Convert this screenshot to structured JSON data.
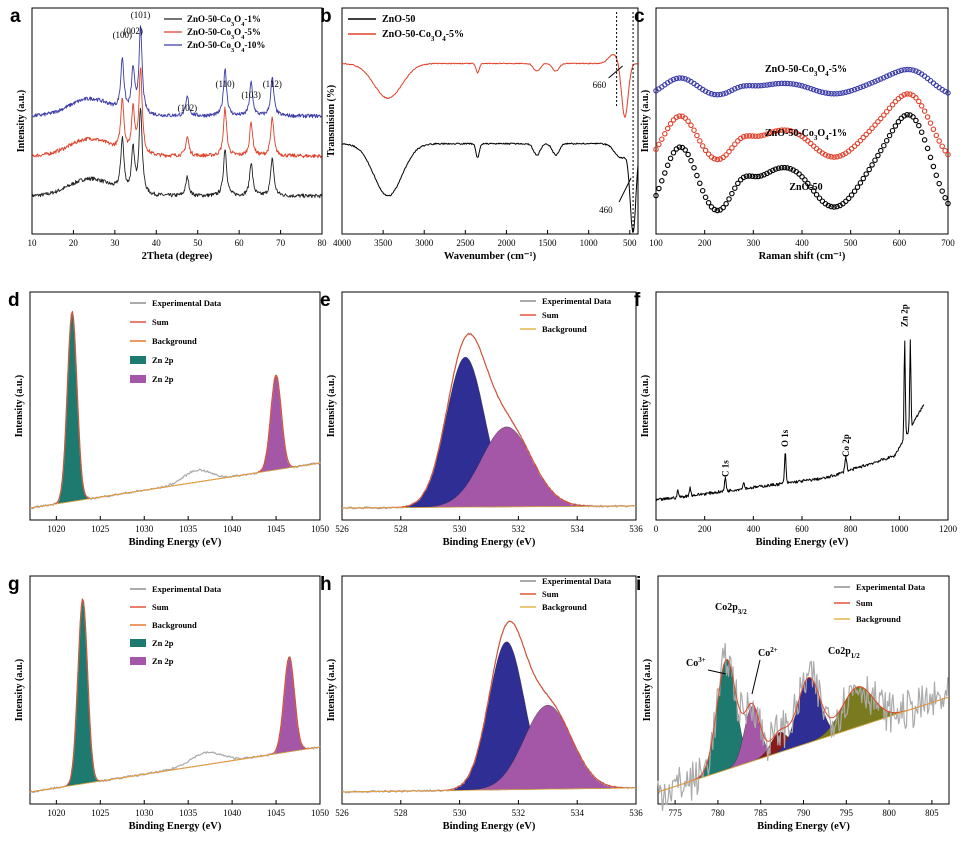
{
  "panels": [
    {
      "id": "a",
      "letter": "a",
      "type": "line",
      "xlabel": "2Theta (degree)",
      "ylabel": "Intensity (a.u.)",
      "xlim": [
        10,
        80
      ],
      "xticks": [
        10,
        20,
        30,
        40,
        50,
        60,
        70,
        80
      ],
      "series": [
        {
          "name": "ZnO-50-Co3O4-1%",
          "color": "#222222"
        },
        {
          "name": "ZnO-50-Co3O4-5%",
          "color": "#e0402a"
        },
        {
          "name": "ZnO-50-Co3O4-10%",
          "color": "#3b3ba8"
        }
      ],
      "annotations": [
        {
          "text": "(100)",
          "x": 31.8
        },
        {
          "text": "(002)",
          "x": 34.4
        },
        {
          "text": "(101)",
          "x": 36.2
        },
        {
          "text": "(102)",
          "x": 47.5
        },
        {
          "text": "(110)",
          "x": 56.6
        },
        {
          "text": "(103)",
          "x": 62.9
        },
        {
          "text": "(112)",
          "x": 68.0
        }
      ]
    },
    {
      "id": "b",
      "letter": "b",
      "type": "line",
      "xlabel": "Wavenumber (cm⁻¹)",
      "ylabel": "Transmision (%)",
      "xlim": [
        4000,
        400
      ],
      "xticks": [
        4000,
        3500,
        3000,
        2500,
        2000,
        1500,
        1000,
        500
      ],
      "series": [
        {
          "name": "ZnO-50",
          "color": "#000000"
        },
        {
          "name": "ZnO-50-Co3O4-5%",
          "color": "#e0402a"
        }
      ],
      "annotations": [
        {
          "text": "660",
          "x": 660
        },
        {
          "text": "460",
          "x": 460
        }
      ]
    },
    {
      "id": "c",
      "letter": "c",
      "type": "scatter",
      "xlabel": "Raman shift (cm⁻¹)",
      "ylabel": "Intensity (a.u.)",
      "xlim": [
        100,
        700
      ],
      "xticks": [
        100,
        200,
        300,
        400,
        500,
        600,
        700
      ],
      "series": [
        {
          "name": "ZnO-50-Co3O4-5%",
          "color": "#3b3ba8"
        },
        {
          "name": "ZnO-50-Co3O4-1%",
          "color": "#e0402a"
        },
        {
          "name": "ZnO-50",
          "color": "#000000"
        }
      ]
    },
    {
      "id": "d",
      "letter": "d",
      "type": "area",
      "xlabel": "Binding Energy (eV)",
      "ylabel": "Intensity (a.u.)",
      "xlim": [
        1017,
        1050
      ],
      "xticks": [
        1020,
        1025,
        1030,
        1035,
        1040,
        1045,
        1050
      ],
      "legend": [
        "Experimental Data",
        "Sum",
        "Background",
        "Zn 2p",
        "Zn 2p"
      ],
      "peaks": [
        {
          "center": 1021.8,
          "color": "#1e7a6e"
        },
        {
          "center": 1045.0,
          "color": "#a457a6"
        }
      ]
    },
    {
      "id": "e",
      "letter": "e",
      "type": "area",
      "xlabel": "Binding Energy (eV)",
      "ylabel": "Intensity (a.u.)",
      "xlim": [
        526,
        536
      ],
      "xticks": [
        526,
        528,
        530,
        532,
        534,
        536
      ],
      "legend": [
        "Experimental Data",
        "Sum",
        "Background"
      ],
      "peaks": [
        {
          "center": 530.2,
          "color": "#2e2e95"
        },
        {
          "center": 531.6,
          "color": "#a457a6"
        }
      ]
    },
    {
      "id": "f",
      "letter": "f",
      "type": "line",
      "xlabel": "Binding Energy (eV)",
      "ylabel": "Intensity (a.u.)",
      "xlim": [
        0,
        1200
      ],
      "xticks": [
        0,
        200,
        400,
        600,
        800,
        1000,
        1200
      ],
      "annotations": [
        {
          "text": "C 1s",
          "x": 285
        },
        {
          "text": "O 1s",
          "x": 531
        },
        {
          "text": "Co 2p",
          "x": 780
        },
        {
          "text": "Zn 2p",
          "x": 1022
        }
      ]
    },
    {
      "id": "g",
      "letter": "g",
      "type": "area",
      "xlabel": "Binding Energy (eV)",
      "ylabel": "Intensity (a.u.)",
      "xlim": [
        1017,
        1050
      ],
      "xticks": [
        1020,
        1025,
        1030,
        1035,
        1040,
        1045,
        1050
      ],
      "legend": [
        "Experimental Data",
        "Sum",
        "Background",
        "Zn 2p",
        "Zn 2p"
      ],
      "peaks": [
        {
          "center": 1023.0,
          "color": "#1e7a6e"
        },
        {
          "center": 1046.5,
          "color": "#a457a6"
        }
      ]
    },
    {
      "id": "h",
      "letter": "h",
      "type": "area",
      "xlabel": "Binding Energy (eV)",
      "ylabel": "Intensity (a.u.)",
      "xlim": [
        526,
        536
      ],
      "xticks": [
        526,
        528,
        530,
        532,
        534,
        536
      ],
      "legend": [
        "Experimental Data",
        "Sum",
        "Background"
      ],
      "peaks": [
        {
          "center": 531.6,
          "color": "#2e2e95"
        },
        {
          "center": 533.0,
          "color": "#a457a6"
        }
      ]
    },
    {
      "id": "i",
      "letter": "i",
      "type": "area",
      "xlabel": "Binding Energy (eV)",
      "ylabel": "Intensity (a.u.)",
      "xlim": [
        773,
        807
      ],
      "xticks": [
        775,
        780,
        785,
        790,
        795,
        800,
        805
      ],
      "legend": [
        "Experimental Data",
        "Sum",
        "Background"
      ],
      "peaks": [
        {
          "center": 781.0,
          "color": "#1e7a6e"
        },
        {
          "center": 784.0,
          "color": "#a457a6"
        },
        {
          "center": 787.2,
          "color": "#8b1a1a"
        },
        {
          "center": 790.6,
          "color": "#2e2e95"
        },
        {
          "center": 796.3,
          "color": "#7a7a1e"
        }
      ],
      "annotations": [
        {
          "text": "Co2p3/2"
        },
        {
          "text": "Co3+"
        },
        {
          "text": "Co2+"
        },
        {
          "text": "Co2p1/2"
        }
      ]
    }
  ],
  "chart_data": [
    {
      "type": "line",
      "title": "",
      "xlabel": "2Theta (degree)",
      "ylabel": "Intensity (a.u.)",
      "xlim": [
        10,
        80
      ],
      "series": [
        {
          "name": "ZnO-50-Co3O4-1%"
        },
        {
          "name": "ZnO-50-Co3O4-5%"
        },
        {
          "name": "ZnO-50-Co3O4-10%"
        }
      ],
      "peak_positions": [
        31.8,
        34.4,
        36.2,
        47.5,
        56.6,
        62.9,
        68.0
      ]
    },
    {
      "type": "line",
      "xlabel": "Wavenumber (cm-1)",
      "ylabel": "Transmision (%)",
      "xlim": [
        4000,
        400
      ],
      "series": [
        {
          "name": "ZnO-50"
        },
        {
          "name": "ZnO-50-Co3O4-5%"
        }
      ],
      "marked_bands": [
        660,
        460
      ]
    },
    {
      "type": "scatter",
      "xlabel": "Raman shift (cm-1)",
      "ylabel": "Intensity (a.u.)",
      "xlim": [
        100,
        700
      ],
      "series": [
        {
          "name": "ZnO-50-Co3O4-5%"
        },
        {
          "name": "ZnO-50-Co3O4-1%"
        },
        {
          "name": "ZnO-50"
        }
      ]
    },
    {
      "type": "area",
      "xlabel": "Binding Energy (eV)",
      "ylabel": "Intensity (a.u.)",
      "xlim": [
        1017,
        1050
      ],
      "peaks": [
        1021.8,
        1045.0
      ]
    },
    {
      "type": "area",
      "xlabel": "Binding Energy (eV)",
      "ylabel": "Intensity (a.u.)",
      "xlim": [
        526,
        536
      ],
      "peaks": [
        530.2,
        531.6
      ]
    },
    {
      "type": "line",
      "xlabel": "Binding Energy (eV)",
      "ylabel": "Intensity (a.u.)",
      "xlim": [
        0,
        1200
      ],
      "peaks": [
        285,
        531,
        780,
        1022
      ]
    },
    {
      "type": "area",
      "xlabel": "Binding Energy (eV)",
      "ylabel": "Intensity (a.u.)",
      "xlim": [
        1017,
        1050
      ],
      "peaks": [
        1023.0,
        1046.5
      ]
    },
    {
      "type": "area",
      "xlabel": "Binding Energy (eV)",
      "ylabel": "Intensity (a.u.)",
      "xlim": [
        526,
        536
      ],
      "peaks": [
        531.6,
        533.0
      ]
    },
    {
      "type": "area",
      "xlabel": "Binding Energy (eV)",
      "ylabel": "Intensity (a.u.)",
      "xlim": [
        773,
        807
      ],
      "peaks": [
        781.0,
        784.0,
        787.2,
        790.6,
        796.3
      ]
    }
  ]
}
